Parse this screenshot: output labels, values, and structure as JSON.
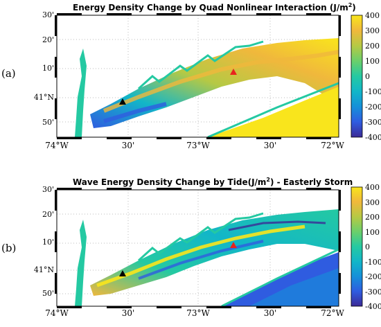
{
  "panels": [
    {
      "letter": "(a)",
      "title": "Energy Density Change by Quad Nonlinear Interaction (J/m",
      "title_sup": "2",
      "title_tail": ")",
      "lat_labels": [
        "30'",
        "20'",
        "10'",
        "41°N",
        "50'"
      ],
      "lon_labels": [
        "74°W",
        "30'",
        "73°W",
        "30'",
        "72°W"
      ],
      "markers": [
        {
          "name": "red-station",
          "color": "#e8231e"
        },
        {
          "name": "black-station",
          "color": "#000000"
        }
      ],
      "colorbar_ticks": [
        "400",
        "300",
        "200",
        "100",
        "0",
        "-100",
        "-200",
        "-300",
        "-400"
      ]
    },
    {
      "letter": "(b)",
      "title": "Wave Energy Density Change by Tide(J/m",
      "title_sup": "2",
      "title_tail": ") - Easterly Storm",
      "lat_labels": [
        "30'",
        "20'",
        "10'",
        "41°N",
        "50'"
      ],
      "lon_labels": [
        "74°W",
        "30'",
        "73°W",
        "30'",
        "72°W"
      ],
      "markers": [
        {
          "name": "red-station",
          "color": "#e8231e"
        },
        {
          "name": "black-station",
          "color": "#000000"
        }
      ],
      "colorbar_ticks": [
        "400",
        "300",
        "200",
        "100",
        "0",
        "-100",
        "-200",
        "-300",
        "-400"
      ]
    }
  ],
  "colormap": [
    "#3b2a96",
    "#2f5ce0",
    "#1590d9",
    "#12b6c8",
    "#24c9a2",
    "#6bcf6b",
    "#b6c944",
    "#f0b83c",
    "#f9e51c"
  ]
}
